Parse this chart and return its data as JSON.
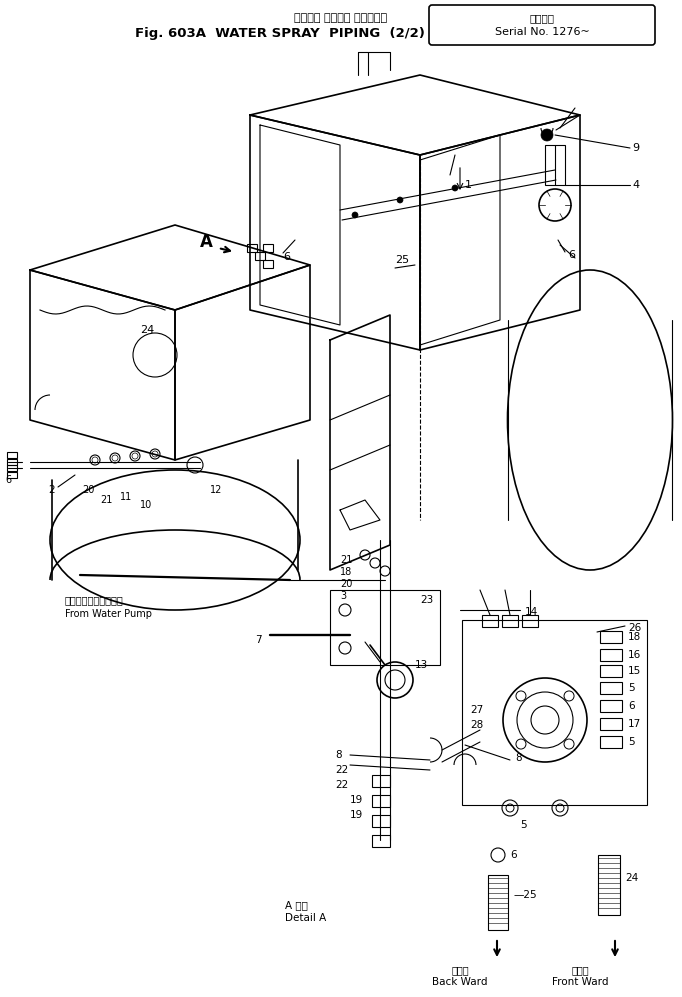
{
  "title_japanese": "ウォータ スプレイ パイピング",
  "title_english": "Fig. 603A  WATER SPRAY  PIPING  (2/2)",
  "serial_japanese": "適用号機",
  "serial_english": "Serial No. 1276~",
  "background_color": "#ffffff",
  "line_color": "#000000",
  "figure_width": 6.82,
  "figure_height": 9.97,
  "dpi": 100,
  "label_from_water_pump_jp": "ウォーターポンプから",
  "label_from_water_pump_en": "From Water Pump",
  "label_detail_a_jp": "A 詳細",
  "label_detail_a_en": "Detail A",
  "label_back_ward_jp": "後軸へ",
  "label_back_ward_en": "Back Ward",
  "label_front_ward_jp": "前軸へ",
  "label_front_ward_en": "Front Ward"
}
